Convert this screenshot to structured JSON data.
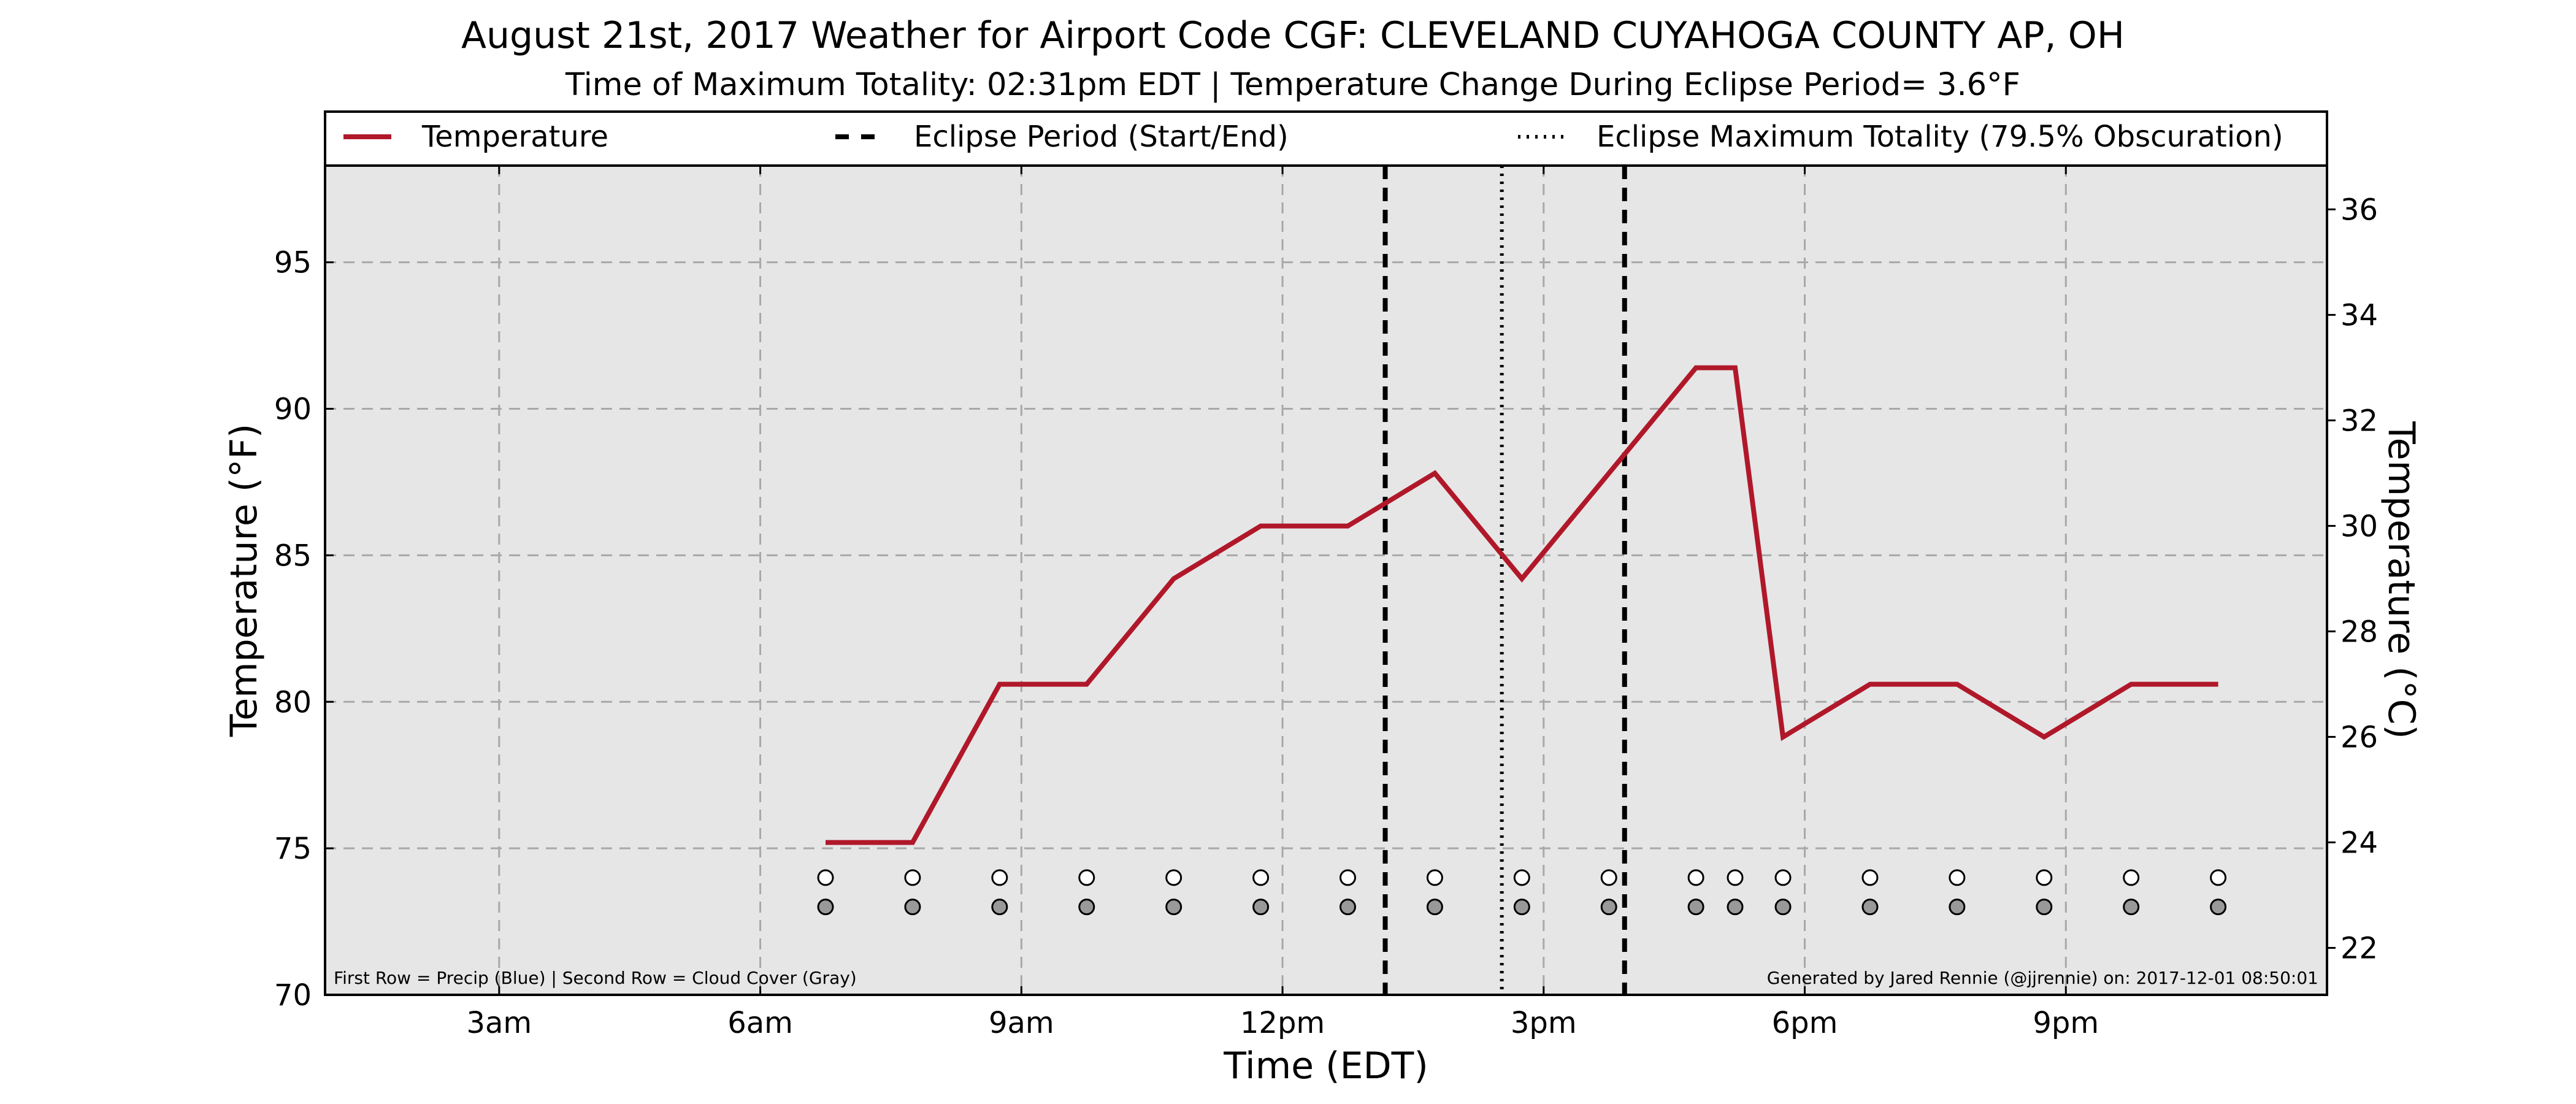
{
  "chart_data": {
    "type": "line",
    "title": "August 21st, 2017 Weather for Airport Code CGF: CLEVELAND CUYAHOGA COUNTY AP, OH",
    "subtitle": "Time of Maximum Totality: 02:31pm EDT | Temperature Change During Eclipse Period= 3.6°F",
    "xlabel": "Time (EDT)",
    "ylabel": "Temperature (°F)",
    "y2label": "Temperature (°C)",
    "xlim": [
      1.0,
      24.0
    ],
    "ylim": [
      70,
      98.3
    ],
    "y2lim": [
      21.11,
      36.83
    ],
    "grid": true,
    "legend_placement": "top",
    "x_ticks": [
      {
        "value": 3,
        "label": "3am"
      },
      {
        "value": 6,
        "label": "6am"
      },
      {
        "value": 9,
        "label": "9am"
      },
      {
        "value": 12,
        "label": "12pm"
      },
      {
        "value": 15,
        "label": "3pm"
      },
      {
        "value": 18,
        "label": "6pm"
      },
      {
        "value": 21,
        "label": "9pm"
      }
    ],
    "y_ticks": [
      70,
      75,
      80,
      85,
      90,
      95
    ],
    "y2_ticks": [
      22,
      24,
      26,
      28,
      30,
      32,
      34,
      36
    ],
    "series": [
      {
        "name": "Temperature",
        "color": "#b0182a",
        "x": [
          6.75,
          7.75,
          8.75,
          9.75,
          10.75,
          11.75,
          12.75,
          13.75,
          14.75,
          15.75,
          16.75,
          17.2,
          17.75,
          18.75,
          19.75,
          20.75,
          21.75,
          22.75
        ],
        "values": [
          75.2,
          75.2,
          80.6,
          80.6,
          84.2,
          86.0,
          86.0,
          87.8,
          84.2,
          87.8,
          91.4,
          91.4,
          78.8,
          80.6,
          80.6,
          78.8,
          80.6,
          80.6
        ]
      }
    ],
    "eclipse": {
      "legend_period": "Eclipse Period (Start/End)",
      "legend_max": "Eclipse Maximum Totality (79.5% Obscuration)",
      "start": 13.18,
      "end": 15.93,
      "max": 14.52
    },
    "precip_row": {
      "x": [
        6.75,
        7.75,
        8.75,
        9.75,
        10.75,
        11.75,
        12.75,
        13.75,
        14.75,
        15.75,
        16.75,
        17.2,
        17.75,
        18.75,
        19.75,
        20.75,
        21.75,
        22.75
      ],
      "y": 74.0,
      "fill": "#ffffff"
    },
    "cloud_row": {
      "x": [
        6.75,
        7.75,
        8.75,
        9.75,
        10.75,
        11.75,
        12.75,
        13.75,
        14.75,
        15.75,
        16.75,
        17.2,
        17.75,
        18.75,
        19.75,
        20.75,
        21.75,
        22.75
      ],
      "y": 73.0,
      "fill": "#999999"
    },
    "footnote_left": "First Row = Precip (Blue) | Second Row = Cloud Cover (Gray)",
    "footnote_right": "Generated by Jared Rennie (@jjrennie) on: 2017-12-01 08:50:01"
  }
}
